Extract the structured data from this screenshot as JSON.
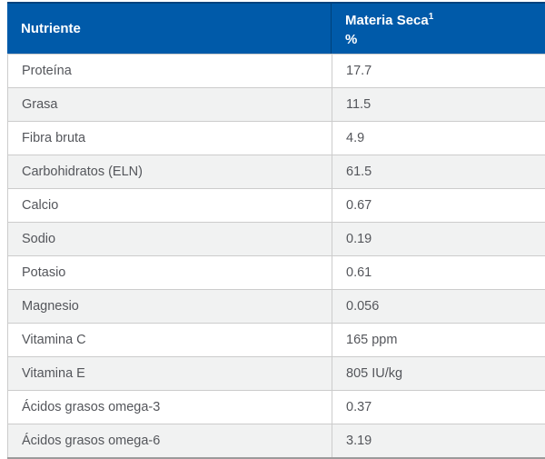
{
  "colors": {
    "header_bg": "#005aa9",
    "header_top_edge": "#00437e",
    "header_text": "#ffffff",
    "row_bg": "#ffffff",
    "row_alt_bg": "#f1f2f2",
    "row_border": "#cccccc",
    "bottom_border": "#9b9b9b",
    "body_text": "#54565b"
  },
  "chart_data": {
    "type": "table",
    "columns": [
      "Nutriente",
      "Materia Seca¹ %"
    ],
    "rows": [
      [
        "Proteína",
        "17.7"
      ],
      [
        "Grasa",
        "11.5"
      ],
      [
        "Fibra bruta",
        "4.9"
      ],
      [
        "Carbohidratos (ELN)",
        "61.5"
      ],
      [
        "Calcio",
        "0.67"
      ],
      [
        "Sodio",
        "0.19"
      ],
      [
        "Potasio",
        "0.61"
      ],
      [
        "Magnesio",
        "0.056"
      ],
      [
        "Vitamina C",
        "165 ppm"
      ],
      [
        "Vitamina E",
        "805 IU/kg"
      ],
      [
        "Ácidos grasos omega-3",
        "0.37"
      ],
      [
        "Ácidos grasos omega-6",
        "3.19"
      ]
    ]
  },
  "table": {
    "header": {
      "nutrient_label": "Nutriente",
      "value_label": "Materia Seca",
      "value_superscript": "1",
      "value_unit": "%"
    },
    "rows": [
      {
        "nutrient": "Proteína",
        "value": "17.7"
      },
      {
        "nutrient": "Grasa",
        "value": "11.5"
      },
      {
        "nutrient": "Fibra bruta",
        "value": "4.9"
      },
      {
        "nutrient": "Carbohidratos (ELN)",
        "value": "61.5"
      },
      {
        "nutrient": "Calcio",
        "value": "0.67"
      },
      {
        "nutrient": "Sodio",
        "value": "0.19"
      },
      {
        "nutrient": "Potasio",
        "value": "0.61"
      },
      {
        "nutrient": "Magnesio",
        "value": "0.056"
      },
      {
        "nutrient": "Vitamina C",
        "value": "165 ppm"
      },
      {
        "nutrient": "Vitamina E",
        "value": "805 IU/kg"
      },
      {
        "nutrient": "Ácidos grasos omega-3",
        "value": "0.37"
      },
      {
        "nutrient": "Ácidos grasos omega-6",
        "value": "3.19"
      }
    ]
  }
}
